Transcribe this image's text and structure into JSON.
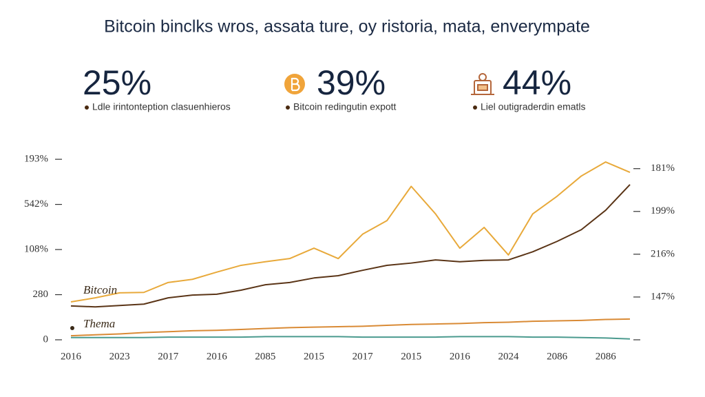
{
  "header": {
    "title": "Bitcoin binclks wros, assata ture, oy ristoria, mata, enverympate",
    "stats": [
      {
        "value": "25%",
        "caption": "Ldle irintonteption clasuenhieros"
      },
      {
        "value": "39%",
        "caption": "Bitcoin redingutin expott"
      },
      {
        "value": "44%",
        "caption": "Liel outigraderdin ematls"
      }
    ]
  },
  "chart_data": {
    "type": "line",
    "x": [
      0,
      0.5,
      1,
      1.5,
      2,
      2.5,
      3,
      3.5,
      4,
      4.5,
      5,
      5.5,
      6,
      6.5,
      7,
      7.5,
      8,
      8.5,
      9,
      9.5,
      10,
      10.5,
      11,
      11.5
    ],
    "xlim": [
      0,
      11.5
    ],
    "xticks": [
      {
        "value": 0,
        "label": "2016"
      },
      {
        "value": 1,
        "label": "2023"
      },
      {
        "value": 2,
        "label": "2017"
      },
      {
        "value": 3,
        "label": "2016"
      },
      {
        "value": 4,
        "label": "2085"
      },
      {
        "value": 5,
        "label": "2015"
      },
      {
        "value": 6,
        "label": "2017"
      },
      {
        "value": 7,
        "label": "2015"
      },
      {
        "value": 8,
        "label": "2016"
      },
      {
        "value": 9,
        "label": "2024"
      },
      {
        "value": 10,
        "label": "2086"
      },
      {
        "value": 11,
        "label": "2086"
      }
    ],
    "ylim": [
      0,
      4.2
    ],
    "yticks": [
      0,
      {
        "value": 1,
        "label": "280"
      },
      {
        "value": 2,
        "label": "108%"
      },
      {
        "value": 3,
        "label": "542%"
      },
      {
        "value": 4,
        "label": "193%"
      }
    ],
    "y2lim": [
      0,
      4.43
    ],
    "y2ticks": [
      {
        "value": 1,
        "label": "147%"
      },
      {
        "value": 2,
        "label": "216%"
      },
      {
        "value": 3,
        "label": "199%"
      },
      {
        "value": 4,
        "label": "181%"
      }
    ],
    "series": [
      {
        "name": "Bitcoin",
        "color": "#e8a93a",
        "values": [
          0.84,
          0.93,
          1.04,
          1.05,
          1.27,
          1.34,
          1.5,
          1.65,
          1.73,
          1.8,
          2.03,
          1.8,
          2.34,
          2.64,
          3.4,
          2.79,
          2.03,
          2.49,
          1.88,
          2.79,
          3.18,
          3.63,
          3.94,
          3.71
        ]
      },
      {
        "color": "#5a3416",
        "values": [
          0.75,
          0.73,
          0.76,
          0.79,
          0.93,
          0.99,
          1.01,
          1.1,
          1.22,
          1.27,
          1.37,
          1.42,
          1.54,
          1.65,
          1.7,
          1.77,
          1.73,
          1.76,
          1.77,
          1.95,
          2.18,
          2.44,
          2.87,
          3.44
        ]
      },
      {
        "name": "Thema",
        "color": "#d98a35",
        "values": [
          0.09,
          0.11,
          0.13,
          0.16,
          0.18,
          0.2,
          0.21,
          0.23,
          0.25,
          0.27,
          0.28,
          0.29,
          0.3,
          0.32,
          0.34,
          0.35,
          0.36,
          0.38,
          0.39,
          0.41,
          0.42,
          0.43,
          0.45,
          0.46
        ]
      },
      {
        "color": "#4a9a8e",
        "values": [
          0.05,
          0.05,
          0.05,
          0.05,
          0.06,
          0.06,
          0.06,
          0.06,
          0.07,
          0.07,
          0.07,
          0.07,
          0.06,
          0.06,
          0.06,
          0.06,
          0.07,
          0.07,
          0.07,
          0.06,
          0.06,
          0.05,
          0.04,
          0.02
        ]
      }
    ]
  }
}
